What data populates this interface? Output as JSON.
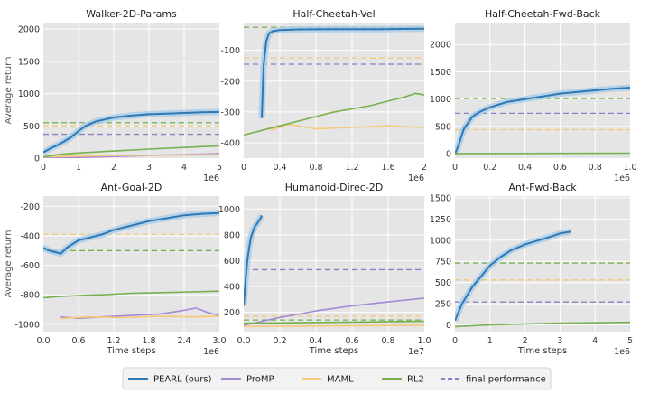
{
  "figure": {
    "legend": [
      {
        "name": "PEARL (ours)",
        "color": "#2e78b4",
        "style": "solid"
      },
      {
        "name": "ProMP",
        "color": "#a48ad4",
        "style": "solid"
      },
      {
        "name": "MAML",
        "color": "#f5c87a",
        "style": "solid"
      },
      {
        "name": "RL2",
        "color": "#77b04c",
        "style": "solid"
      },
      {
        "name": "final performance",
        "color": "#8a7fc4",
        "style": "dashed"
      }
    ],
    "colors": {
      "pearl": "#2e78b4",
      "promp": "#a48ad4",
      "maml": "#f5c87a",
      "rl2": "#77b04c",
      "final": "#8a7fc4",
      "background": "#e5e5e5",
      "grid": "#ffffff"
    }
  },
  "chart_data": [
    {
      "type": "line",
      "title": "Walker-2D-Params",
      "ylabel": "Average return",
      "xlabel": "",
      "xlim": [
        0,
        5
      ],
      "ylim": [
        0,
        2100
      ],
      "xticks": [
        "0",
        "1",
        "2",
        "3",
        "4",
        "5"
      ],
      "yticks": [
        "0",
        "500",
        "1000",
        "1500",
        "2000"
      ],
      "xticks_v": [
        0,
        1,
        2,
        3,
        4,
        5
      ],
      "yticks_v": [
        0,
        500,
        1000,
        1500,
        2000
      ],
      "scale_note": "1e6",
      "series": [
        {
          "name": "PEARL (ours)",
          "key": "pearl",
          "x": [
            0,
            0.2,
            0.4,
            0.6,
            0.8,
            1.0,
            1.2,
            1.5,
            2.0,
            2.5,
            3.0,
            3.5,
            4.0,
            4.5,
            5.0
          ],
          "y": [
            90,
            150,
            200,
            260,
            330,
            420,
            500,
            570,
            630,
            660,
            680,
            690,
            700,
            710,
            715
          ]
        },
        {
          "name": "ProMP",
          "key": "promp",
          "x": [
            0,
            1,
            2,
            3,
            4,
            5
          ],
          "y": [
            0,
            10,
            25,
            40,
            55,
            70
          ]
        },
        {
          "name": "MAML",
          "key": "maml",
          "x": [
            0,
            1,
            2,
            3,
            4,
            5
          ],
          "y": [
            20,
            30,
            40,
            45,
            50,
            55
          ]
        },
        {
          "name": "RL2",
          "key": "rl2",
          "x": [
            0,
            0.5,
            1,
            2,
            3,
            4,
            5
          ],
          "y": [
            20,
            60,
            80,
            110,
            140,
            165,
            190
          ]
        }
      ],
      "hlines": [
        {
          "key": "final",
          "y": 370
        },
        {
          "key": "maml",
          "y": 500
        },
        {
          "key": "rl2",
          "y": 550
        }
      ]
    },
    {
      "type": "line",
      "title": "Half-Cheetah-Vel",
      "ylabel": "",
      "xlabel": "",
      "xlim": [
        0,
        2
      ],
      "ylim": [
        -450,
        -10
      ],
      "xticks": [
        "0",
        "0.4",
        "0.8",
        "1.2",
        "1.6",
        "2"
      ],
      "yticks": [
        "-100",
        "-200",
        "-300",
        "-400"
      ],
      "xticks_v": [
        0,
        0.4,
        0.8,
        1.2,
        1.6,
        2
      ],
      "yticks_v": [
        -100,
        -200,
        -300,
        -400
      ],
      "scale_note": "1e6",
      "series": [
        {
          "name": "PEARL (ours)",
          "key": "pearl",
          "x": [
            0.2,
            0.22,
            0.25,
            0.28,
            0.32,
            0.4,
            0.6,
            1.0,
            1.5,
            2.0
          ],
          "y": [
            -320,
            -150,
            -70,
            -45,
            -38,
            -34,
            -32,
            -31,
            -31,
            -30
          ]
        },
        {
          "name": "MAML",
          "key": "maml",
          "x": [
            0.3,
            0.5,
            0.8,
            1.2,
            1.6,
            2.0
          ],
          "y": [
            -360,
            -340,
            -355,
            -350,
            -345,
            -350
          ]
        },
        {
          "name": "RL2",
          "key": "rl2",
          "x": [
            0,
            0.2,
            0.4,
            0.6,
            0.8,
            1.0,
            1.2,
            1.4,
            1.6,
            1.8,
            1.9,
            2.0
          ],
          "y": [
            -375,
            -360,
            -345,
            -330,
            -315,
            -300,
            -290,
            -280,
            -265,
            -250,
            -240,
            -245
          ]
        }
      ],
      "hlines": [
        {
          "key": "rl2",
          "y": -25
        },
        {
          "key": "maml",
          "y": -125
        },
        {
          "key": "final",
          "y": -145
        }
      ]
    },
    {
      "type": "line",
      "title": "Half-Cheetah-Fwd-Back",
      "ylabel": "",
      "xlabel": "",
      "xlim": [
        0,
        1
      ],
      "ylim": [
        -80,
        2400
      ],
      "xticks": [
        "0",
        "0.2",
        "0.4",
        "0.6",
        "0.8",
        "1.0"
      ],
      "yticks": [
        "0",
        "500",
        "1000",
        "1500",
        "2000"
      ],
      "xticks_v": [
        0,
        0.2,
        0.4,
        0.6,
        0.8,
        1.0
      ],
      "yticks_v": [
        0,
        500,
        1000,
        1500,
        2000
      ],
      "scale_note": "1e6",
      "series": [
        {
          "name": "PEARL (ours)",
          "key": "pearl",
          "x": [
            0,
            0.02,
            0.05,
            0.1,
            0.15,
            0.2,
            0.25,
            0.3,
            0.4,
            0.5,
            0.6,
            0.7,
            0.8,
            0.9,
            1.0
          ],
          "y": [
            0,
            150,
            450,
            680,
            780,
            850,
            900,
            950,
            1000,
            1050,
            1100,
            1130,
            1160,
            1190,
            1210
          ]
        },
        {
          "name": "RL2",
          "key": "rl2",
          "x": [
            0,
            1
          ],
          "y": [
            5,
            10
          ]
        }
      ],
      "hlines": [
        {
          "key": "rl2",
          "y": 1010
        },
        {
          "key": "final",
          "y": 740
        },
        {
          "key": "maml",
          "y": 440
        }
      ]
    },
    {
      "type": "line",
      "title": "Ant-Goal-2D",
      "ylabel": "Average return",
      "xlabel": "Time steps",
      "xlim": [
        0,
        3
      ],
      "ylim": [
        -1050,
        -130
      ],
      "xticks": [
        "0.0",
        "0.6",
        "1.2",
        "1.8",
        "2.4",
        "3.0"
      ],
      "yticks": [
        "-200",
        "-400",
        "-600",
        "-800",
        "-1000"
      ],
      "xticks_v": [
        0,
        0.6,
        1.2,
        1.8,
        2.4,
        3.0
      ],
      "yticks_v": [
        -200,
        -400,
        -600,
        -800,
        -1000
      ],
      "scale_note": "1e6",
      "series": [
        {
          "name": "PEARL (ours)",
          "key": "pearl",
          "x": [
            0,
            0.1,
            0.2,
            0.3,
            0.4,
            0.6,
            0.8,
            1.0,
            1.2,
            1.5,
            1.8,
            2.1,
            2.4,
            2.7,
            3.0
          ],
          "y": [
            -480,
            -500,
            -510,
            -520,
            -480,
            -430,
            -410,
            -390,
            -360,
            -330,
            -300,
            -280,
            -260,
            -250,
            -245
          ]
        },
        {
          "name": "ProMP",
          "key": "promp",
          "x": [
            0.3,
            0.6,
            1.0,
            1.5,
            2.0,
            2.4,
            2.6,
            2.8,
            3.0
          ],
          "y": [
            -950,
            -960,
            -950,
            -940,
            -930,
            -905,
            -890,
            -920,
            -940
          ]
        },
        {
          "name": "MAML",
          "key": "maml",
          "x": [
            0.3,
            0.8,
            1.4,
            2.0,
            2.6,
            3.0
          ],
          "y": [
            -960,
            -950,
            -955,
            -945,
            -950,
            -945
          ]
        },
        {
          "name": "RL2",
          "key": "rl2",
          "x": [
            0,
            0.3,
            0.6,
            1.0,
            1.5,
            2.0,
            2.5,
            3.0
          ],
          "y": [
            -820,
            -810,
            -805,
            -800,
            -790,
            -785,
            -780,
            -775
          ]
        }
      ],
      "hlines": [
        {
          "key": "maml",
          "y": -390
        },
        {
          "key": "rl2",
          "y": -500
        }
      ]
    },
    {
      "type": "line",
      "title": "Humanoid-Direc-2D",
      "ylabel": "",
      "xlabel": "Time steps",
      "xlim": [
        0,
        1
      ],
      "ylim": [
        50,
        1100
      ],
      "xticks": [
        "0.0",
        "0.2",
        "0.4",
        "0.6",
        "0.8",
        "1.0"
      ],
      "yticks": [
        "200",
        "400",
        "600",
        "800",
        "1000"
      ],
      "xticks_v": [
        0,
        0.2,
        0.4,
        0.6,
        0.8,
        1.0
      ],
      "yticks_v": [
        200,
        400,
        600,
        800,
        1000
      ],
      "scale_note": "1e7",
      "series": [
        {
          "name": "PEARL (ours)",
          "key": "pearl",
          "x": [
            0,
            0.01,
            0.02,
            0.03,
            0.04,
            0.05,
            0.06,
            0.07,
            0.08,
            0.09,
            0.1
          ],
          "y": [
            250,
            450,
            600,
            700,
            780,
            820,
            860,
            880,
            900,
            920,
            950
          ]
        },
        {
          "name": "ProMP",
          "key": "promp",
          "x": [
            0,
            0.2,
            0.4,
            0.6,
            0.8,
            1.0
          ],
          "y": [
            100,
            160,
            210,
            250,
            280,
            310
          ]
        },
        {
          "name": "MAML",
          "key": "maml",
          "x": [
            0,
            1
          ],
          "y": [
            90,
            100
          ]
        },
        {
          "name": "RL2",
          "key": "rl2",
          "x": [
            0,
            1
          ],
          "y": [
            115,
            130
          ]
        }
      ],
      "hlines": [
        {
          "key": "final",
          "y": 530
        },
        {
          "key": "maml",
          "y": 170
        },
        {
          "key": "rl2",
          "y": 140
        }
      ]
    },
    {
      "type": "line",
      "title": "Ant-Fwd-Back",
      "ylabel": "",
      "xlabel": "Time steps",
      "xlim": [
        0,
        5
      ],
      "ylim": [
        -80,
        1520
      ],
      "xticks": [
        "0",
        "1",
        "2",
        "3",
        "4",
        "5"
      ],
      "yticks": [
        "0",
        "250",
        "500",
        "750",
        "1000",
        "1250",
        "1500"
      ],
      "xticks_v": [
        0,
        1,
        2,
        3,
        4,
        5
      ],
      "yticks_v": [
        0,
        250,
        500,
        750,
        1000,
        1250,
        1500
      ],
      "scale_note": "1e6",
      "series": [
        {
          "name": "PEARL (ours)",
          "key": "pearl",
          "x": [
            0,
            0.2,
            0.5,
            0.8,
            1.0,
            1.3,
            1.6,
            2.0,
            2.4,
            2.8,
            3.0,
            3.3
          ],
          "y": [
            50,
            250,
            450,
            600,
            700,
            800,
            880,
            950,
            1000,
            1050,
            1080,
            1100
          ]
        },
        {
          "name": "RL2",
          "key": "rl2",
          "x": [
            0,
            1,
            2,
            3,
            4,
            5
          ],
          "y": [
            -20,
            0,
            10,
            20,
            25,
            30
          ]
        }
      ],
      "hlines": [
        {
          "key": "rl2",
          "y": 730
        },
        {
          "key": "maml",
          "y": 530
        },
        {
          "key": "final",
          "y": 270
        }
      ]
    }
  ]
}
